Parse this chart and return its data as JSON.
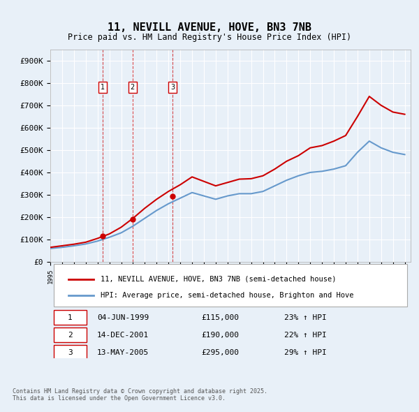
{
  "title": "11, NEVILL AVENUE, HOVE, BN3 7NB",
  "subtitle": "Price paid vs. HM Land Registry's House Price Index (HPI)",
  "background_color": "#e8f0f8",
  "plot_bg_color": "#e8f0f8",
  "ylim": [
    0,
    950000
  ],
  "yticks": [
    0,
    100000,
    200000,
    300000,
    400000,
    500000,
    600000,
    700000,
    800000,
    900000
  ],
  "ytick_labels": [
    "£0",
    "£100K",
    "£200K",
    "£300K",
    "£400K",
    "£500K",
    "£600K",
    "£700K",
    "£800K",
    "£900K"
  ],
  "legend_label_red": "11, NEVILL AVENUE, HOVE, BN3 7NB (semi-detached house)",
  "legend_label_blue": "HPI: Average price, semi-detached house, Brighton and Hove",
  "red_color": "#cc0000",
  "blue_color": "#6699cc",
  "grid_color": "#ffffff",
  "purchase_dates": [
    "1999-06-04",
    "2001-12-14",
    "2005-05-13"
  ],
  "purchase_prices": [
    115000,
    190000,
    295000
  ],
  "purchase_labels": [
    "1",
    "2",
    "3"
  ],
  "purchase_hpi_pct": [
    "23% ↑ HPI",
    "22% ↑ HPI",
    "29% ↑ HPI"
  ],
  "purchase_dates_str": [
    "04-JUN-1999",
    "14-DEC-2001",
    "13-MAY-2005"
  ],
  "footnote": "Contains HM Land Registry data © Crown copyright and database right 2025.\nThis data is licensed under the Open Government Licence v3.0.",
  "hpi_years": [
    1995,
    1996,
    1997,
    1998,
    1999,
    2000,
    2001,
    2002,
    2003,
    2004,
    2005,
    2006,
    2007,
    2008,
    2009,
    2010,
    2011,
    2012,
    2013,
    2014,
    2015,
    2016,
    2017,
    2018,
    2019,
    2020,
    2021,
    2022,
    2023,
    2024,
    2025
  ],
  "hpi_values": [
    60000,
    65000,
    72000,
    80000,
    93000,
    110000,
    130000,
    160000,
    195000,
    230000,
    260000,
    285000,
    310000,
    295000,
    280000,
    295000,
    305000,
    305000,
    315000,
    340000,
    365000,
    385000,
    400000,
    405000,
    415000,
    430000,
    490000,
    540000,
    510000,
    490000,
    480000
  ],
  "red_years": [
    1995,
    1996,
    1997,
    1998,
    1999,
    2000,
    2001,
    2002,
    2003,
    2004,
    2005,
    2006,
    2007,
    2008,
    2009,
    2010,
    2011,
    2012,
    2013,
    2014,
    2015,
    2016,
    2017,
    2018,
    2019,
    2020,
    2021,
    2022,
    2023,
    2024,
    2025
  ],
  "red_values": [
    65000,
    72000,
    79000,
    88000,
    105000,
    125000,
    155000,
    195000,
    240000,
    280000,
    315000,
    345000,
    380000,
    360000,
    340000,
    355000,
    370000,
    372000,
    385000,
    415000,
    450000,
    475000,
    510000,
    520000,
    540000,
    565000,
    650000,
    740000,
    700000,
    670000,
    660000
  ]
}
